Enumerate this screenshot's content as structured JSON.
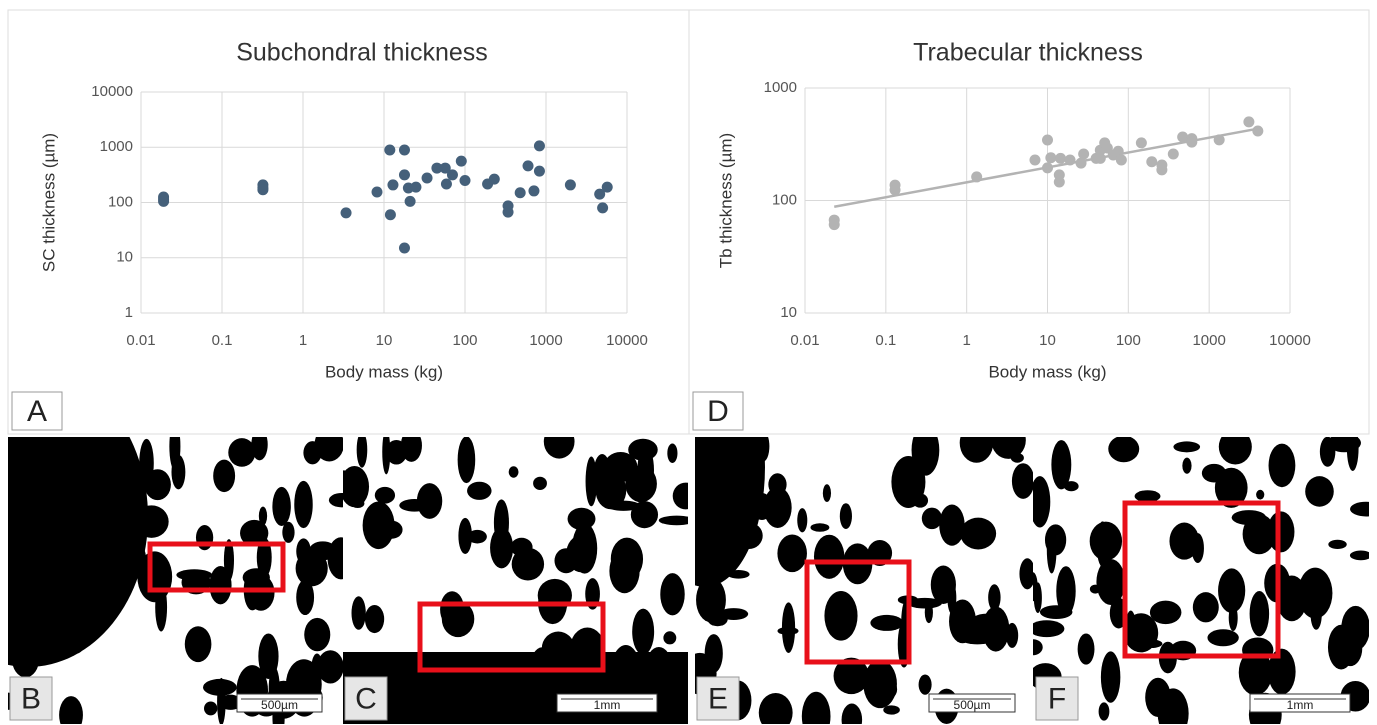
{
  "chart_data": [
    {
      "type": "scatter",
      "title": "Subchondral thickness",
      "x_label": "Body mass (kg)",
      "y_label": "SC thickness (µm)",
      "xscale": "log",
      "yscale": "log",
      "grid": true,
      "xlim": [
        0.01,
        10000
      ],
      "ylim": [
        1,
        10000
      ],
      "xticks": [
        0.01,
        0.1,
        1,
        10,
        100,
        1000,
        10000
      ],
      "yticks": [
        1,
        10,
        100,
        1000,
        10000
      ],
      "series": [
        {
          "color": "#45607a",
          "x": [
            0.019,
            0.019,
            0.019,
            0.32,
            0.32,
            0.32,
            3.4,
            8.2,
            11.8,
            12,
            12.9,
            17.9,
            17.9,
            17.9,
            20,
            21,
            24.8,
            34,
            45,
            57,
            59,
            70,
            90,
            100,
            190,
            230,
            340,
            340,
            480,
            600,
            710,
            830,
            830,
            2000,
            4600,
            5000,
            5700
          ],
          "values": [
            126,
            115,
            105,
            208,
            185,
            170,
            65,
            155,
            890,
            60,
            208,
            890,
            316,
            15,
            183,
            105,
            190,
            278,
            420,
            420,
            216,
            316,
            560,
            250,
            216,
            265,
            87,
            67,
            150,
            460,
            162,
            1060,
            370,
            208,
            142,
            80,
            190
          ]
        }
      ]
    },
    {
      "type": "scatter",
      "title": "Trabecular thickness",
      "x_label": "Body mass (kg)",
      "y_label": "Tb thickness (µm)",
      "xscale": "log",
      "yscale": "log",
      "grid": true,
      "trendline": true,
      "xlim": [
        0.01,
        10000
      ],
      "ylim": [
        10,
        1000
      ],
      "xticks": [
        0.01,
        0.1,
        1,
        10,
        100,
        1000,
        10000
      ],
      "yticks": [
        10,
        100,
        1000
      ],
      "series": [
        {
          "color": "#b3b3b3",
          "x": [
            0.023,
            0.023,
            0.13,
            0.13,
            1.33,
            7,
            10,
            10,
            11,
            14,
            14,
            14.5,
            19,
            26,
            28,
            40,
            45,
            45,
            51,
            55,
            65,
            75,
            82,
            145,
            195,
            260,
            260,
            360,
            470,
            610,
            610,
            1330,
            3100,
            4000
          ],
          "values": [
            67,
            61,
            137,
            124,
            162,
            229,
            345,
            195,
            240,
            169,
            146,
            237,
            229,
            215,
            259,
            237,
            280,
            237,
            325,
            293,
            254,
            274,
            229,
            325,
            221,
            207,
            187,
            259,
            367,
            355,
            330,
            346,
            500,
            415
          ]
        }
      ]
    }
  ],
  "panels": {
    "labels": [
      "A",
      "B",
      "C",
      "D",
      "E",
      "F"
    ],
    "scale_bars": [
      "500µm",
      "1mm",
      "500µm",
      "1mm"
    ]
  }
}
